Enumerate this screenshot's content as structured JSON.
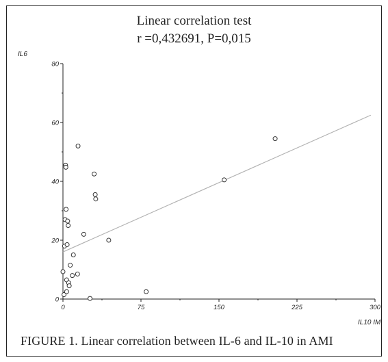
{
  "chart_data": {
    "type": "scatter",
    "title": "Linear correlation test",
    "subtitle": "r =0,432691, P=0,015",
    "xlabel": "IL10 IM",
    "ylabel": "IL6",
    "xlim": [
      0,
      300
    ],
    "ylim": [
      0,
      80
    ],
    "xticks": [
      "0",
      "75",
      "150",
      "225",
      "300"
    ],
    "yticks": [
      "0",
      "20",
      "40",
      "60",
      "80"
    ],
    "grid": false,
    "points": [
      {
        "x": 0,
        "y": 9.3
      },
      {
        "x": 1,
        "y": 1.5
      },
      {
        "x": 1.5,
        "y": 18
      },
      {
        "x": 2,
        "y": 27
      },
      {
        "x": 2.5,
        "y": 45.5
      },
      {
        "x": 2.8,
        "y": 44.8
      },
      {
        "x": 3,
        "y": 30.5
      },
      {
        "x": 3.5,
        "y": 6.5
      },
      {
        "x": 3.5,
        "y": 2.5
      },
      {
        "x": 4,
        "y": 18.5
      },
      {
        "x": 4.5,
        "y": 26.5
      },
      {
        "x": 5,
        "y": 25
      },
      {
        "x": 5.5,
        "y": 5.5
      },
      {
        "x": 6,
        "y": 4.5
      },
      {
        "x": 7,
        "y": 11.5
      },
      {
        "x": 9,
        "y": 8
      },
      {
        "x": 10,
        "y": 15
      },
      {
        "x": 14,
        "y": 8.5
      },
      {
        "x": 14.5,
        "y": 52
      },
      {
        "x": 20,
        "y": 22
      },
      {
        "x": 26,
        "y": 0.2
      },
      {
        "x": 30,
        "y": 42.5
      },
      {
        "x": 31,
        "y": 35.5
      },
      {
        "x": 31.5,
        "y": 34
      },
      {
        "x": 44,
        "y": 20
      },
      {
        "x": 80,
        "y": 2.5
      },
      {
        "x": 155,
        "y": 40.5
      },
      {
        "x": 204,
        "y": 54.5
      }
    ],
    "regression_line": {
      "x": [
        0,
        296
      ],
      "y": [
        16,
        62.5
      ]
    },
    "marker_color": "#333333",
    "line_color": "#b3b3b3"
  },
  "caption": "FIGURE 1.  Linear correlation between IL-6 and IL-10 in AMI"
}
